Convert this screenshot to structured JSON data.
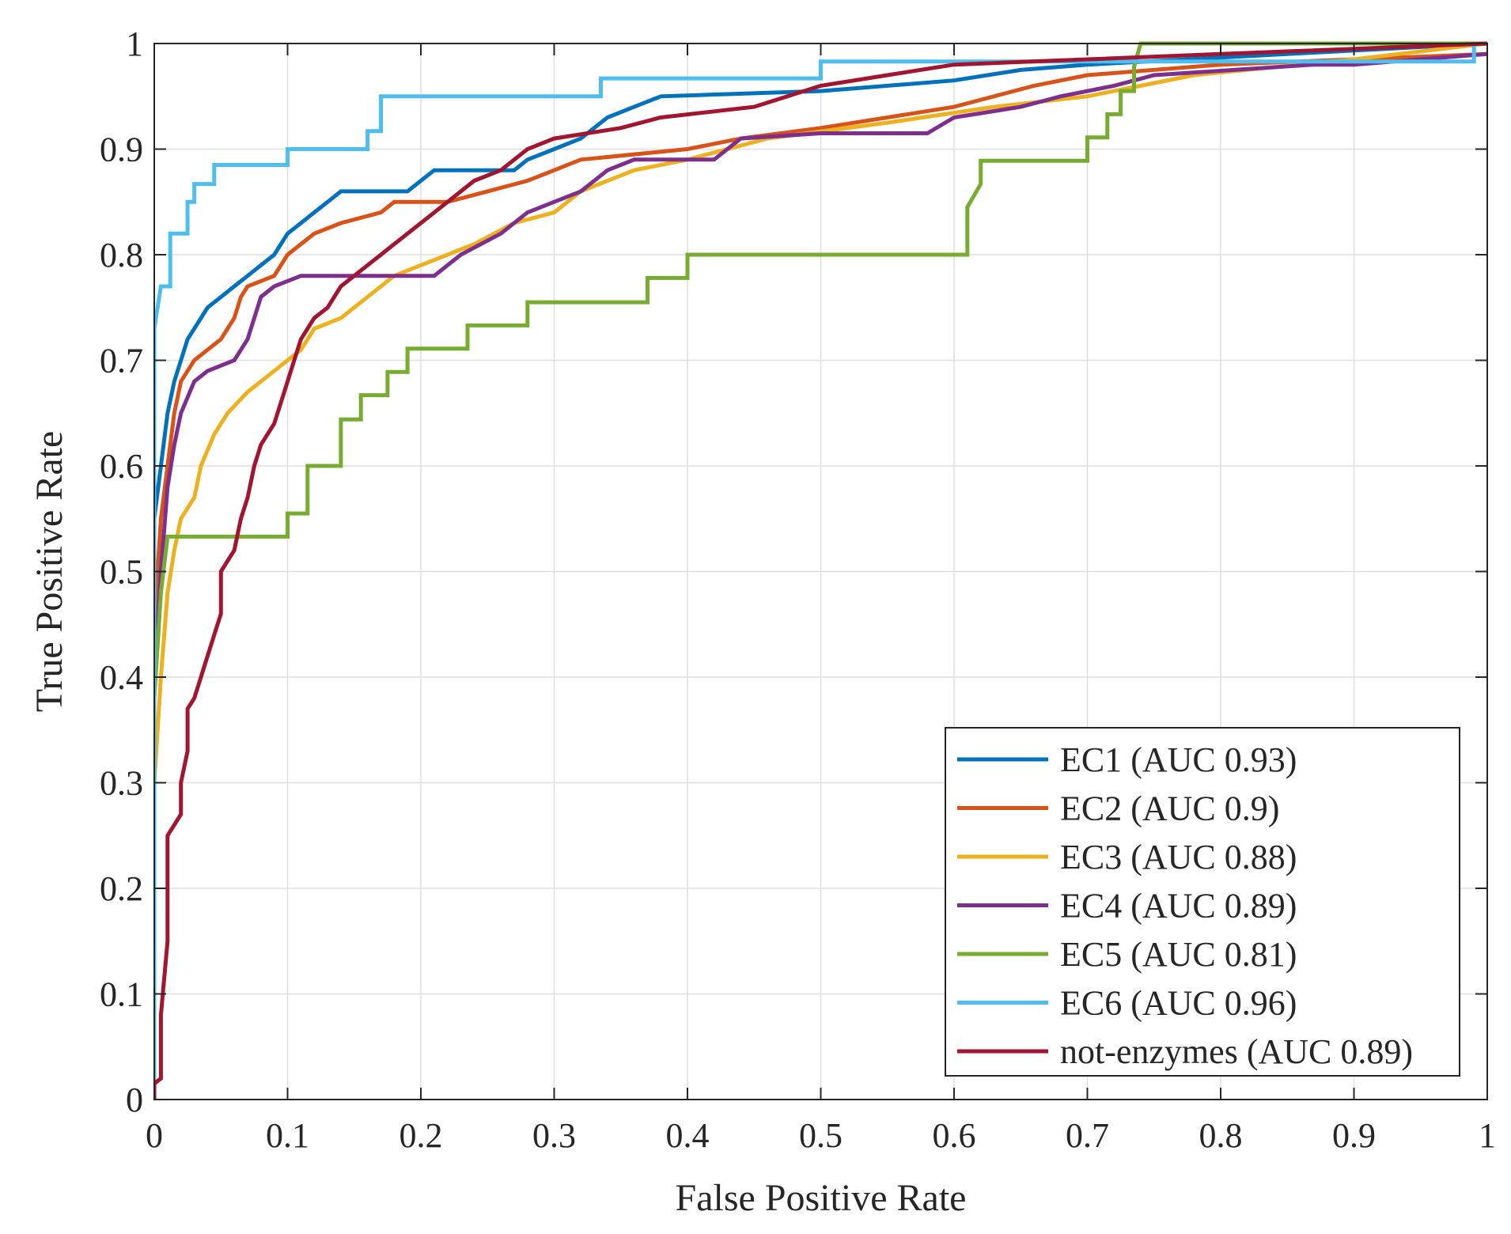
{
  "chart_data": {
    "type": "line",
    "title": "",
    "xlabel": "False Positive Rate",
    "ylabel": "True Positive Rate",
    "xlim": [
      0,
      1
    ],
    "ylim": [
      0,
      1
    ],
    "xticks": [
      "0",
      "0.1",
      "0.2",
      "0.3",
      "0.4",
      "0.5",
      "0.6",
      "0.7",
      "0.8",
      "0.9",
      "1"
    ],
    "yticks": [
      "0",
      "0.1",
      "0.2",
      "0.3",
      "0.4",
      "0.5",
      "0.6",
      "0.7",
      "0.8",
      "0.9",
      "1"
    ],
    "grid": true,
    "legend_position": "bottom-right",
    "series": [
      {
        "name": "EC1 (AUC 0.93)",
        "color": "#0072BD",
        "points": [
          [
            0,
            0
          ],
          [
            0,
            0.55
          ],
          [
            0.005,
            0.6
          ],
          [
            0.01,
            0.65
          ],
          [
            0.015,
            0.68
          ],
          [
            0.02,
            0.7
          ],
          [
            0.025,
            0.72
          ],
          [
            0.03,
            0.73
          ],
          [
            0.035,
            0.74
          ],
          [
            0.04,
            0.75
          ],
          [
            0.05,
            0.76
          ],
          [
            0.06,
            0.77
          ],
          [
            0.07,
            0.78
          ],
          [
            0.08,
            0.79
          ],
          [
            0.09,
            0.8
          ],
          [
            0.1,
            0.82
          ],
          [
            0.11,
            0.83
          ],
          [
            0.12,
            0.84
          ],
          [
            0.13,
            0.85
          ],
          [
            0.14,
            0.86
          ],
          [
            0.19,
            0.86
          ],
          [
            0.2,
            0.87
          ],
          [
            0.21,
            0.88
          ],
          [
            0.27,
            0.88
          ],
          [
            0.28,
            0.89
          ],
          [
            0.3,
            0.9
          ],
          [
            0.32,
            0.91
          ],
          [
            0.34,
            0.93
          ],
          [
            0.36,
            0.94
          ],
          [
            0.38,
            0.95
          ],
          [
            0.5,
            0.955
          ],
          [
            0.55,
            0.96
          ],
          [
            0.6,
            0.965
          ],
          [
            0.65,
            0.975
          ],
          [
            0.7,
            0.98
          ],
          [
            0.85,
            0.99
          ],
          [
            1,
            1
          ]
        ]
      },
      {
        "name": "EC2 (AUC 0.9)",
        "color": "#D95319",
        "points": [
          [
            0,
            0
          ],
          [
            0,
            0.45
          ],
          [
            0.005,
            0.55
          ],
          [
            0.01,
            0.6
          ],
          [
            0.015,
            0.65
          ],
          [
            0.02,
            0.68
          ],
          [
            0.03,
            0.7
          ],
          [
            0.04,
            0.71
          ],
          [
            0.05,
            0.72
          ],
          [
            0.06,
            0.74
          ],
          [
            0.065,
            0.76
          ],
          [
            0.07,
            0.77
          ],
          [
            0.09,
            0.78
          ],
          [
            0.1,
            0.8
          ],
          [
            0.12,
            0.82
          ],
          [
            0.14,
            0.83
          ],
          [
            0.17,
            0.84
          ],
          [
            0.18,
            0.85
          ],
          [
            0.22,
            0.85
          ],
          [
            0.25,
            0.86
          ],
          [
            0.28,
            0.87
          ],
          [
            0.3,
            0.88
          ],
          [
            0.32,
            0.89
          ],
          [
            0.4,
            0.9
          ],
          [
            0.44,
            0.91
          ],
          [
            0.5,
            0.92
          ],
          [
            0.55,
            0.93
          ],
          [
            0.6,
            0.94
          ],
          [
            0.63,
            0.95
          ],
          [
            0.66,
            0.96
          ],
          [
            0.7,
            0.97
          ],
          [
            0.8,
            0.98
          ],
          [
            1,
            0.99
          ]
        ]
      },
      {
        "name": "EC3 (AUC 0.88)",
        "color": "#EDB120",
        "points": [
          [
            0,
            0
          ],
          [
            0,
            0.3
          ],
          [
            0.005,
            0.4
          ],
          [
            0.01,
            0.48
          ],
          [
            0.015,
            0.52
          ],
          [
            0.02,
            0.55
          ],
          [
            0.03,
            0.57
          ],
          [
            0.035,
            0.6
          ],
          [
            0.045,
            0.63
          ],
          [
            0.055,
            0.65
          ],
          [
            0.07,
            0.67
          ],
          [
            0.09,
            0.69
          ],
          [
            0.1,
            0.7
          ],
          [
            0.11,
            0.71
          ],
          [
            0.12,
            0.73
          ],
          [
            0.14,
            0.74
          ],
          [
            0.16,
            0.76
          ],
          [
            0.18,
            0.78
          ],
          [
            0.2,
            0.79
          ],
          [
            0.22,
            0.8
          ],
          [
            0.24,
            0.81
          ],
          [
            0.27,
            0.83
          ],
          [
            0.3,
            0.84
          ],
          [
            0.32,
            0.86
          ],
          [
            0.36,
            0.88
          ],
          [
            0.4,
            0.89
          ],
          [
            0.46,
            0.91
          ],
          [
            0.55,
            0.925
          ],
          [
            0.63,
            0.94
          ],
          [
            0.7,
            0.95
          ],
          [
            0.78,
            0.97
          ],
          [
            0.9,
            0.985
          ],
          [
            1,
            1
          ]
        ]
      },
      {
        "name": "EC4 (AUC 0.89)",
        "color": "#7E2F8E",
        "points": [
          [
            0,
            0
          ],
          [
            0,
            0.4
          ],
          [
            0.005,
            0.5
          ],
          [
            0.01,
            0.58
          ],
          [
            0.015,
            0.62
          ],
          [
            0.02,
            0.65
          ],
          [
            0.03,
            0.68
          ],
          [
            0.04,
            0.69
          ],
          [
            0.06,
            0.7
          ],
          [
            0.07,
            0.72
          ],
          [
            0.08,
            0.76
          ],
          [
            0.09,
            0.77
          ],
          [
            0.11,
            0.78
          ],
          [
            0.21,
            0.78
          ],
          [
            0.23,
            0.8
          ],
          [
            0.26,
            0.82
          ],
          [
            0.28,
            0.84
          ],
          [
            0.32,
            0.86
          ],
          [
            0.34,
            0.88
          ],
          [
            0.36,
            0.89
          ],
          [
            0.42,
            0.89
          ],
          [
            0.44,
            0.91
          ],
          [
            0.5,
            0.915
          ],
          [
            0.58,
            0.915
          ],
          [
            0.6,
            0.93
          ],
          [
            0.65,
            0.94
          ],
          [
            0.68,
            0.95
          ],
          [
            0.72,
            0.96
          ],
          [
            0.75,
            0.97
          ],
          [
            0.87,
            0.98
          ],
          [
            0.9,
            0.98
          ],
          [
            1,
            0.99
          ]
        ]
      },
      {
        "name": "EC5 (AUC 0.81)",
        "color": "#77AC30",
        "points": [
          [
            0,
            0
          ],
          [
            0,
            0.38
          ],
          [
            0.005,
            0.48
          ],
          [
            0.01,
            0.533
          ],
          [
            0.1,
            0.533
          ],
          [
            0.1,
            0.555
          ],
          [
            0.115,
            0.555
          ],
          [
            0.115,
            0.6
          ],
          [
            0.14,
            0.6
          ],
          [
            0.14,
            0.644
          ],
          [
            0.155,
            0.644
          ],
          [
            0.155,
            0.667
          ],
          [
            0.175,
            0.667
          ],
          [
            0.175,
            0.689
          ],
          [
            0.19,
            0.689
          ],
          [
            0.19,
            0.711
          ],
          [
            0.235,
            0.711
          ],
          [
            0.235,
            0.733
          ],
          [
            0.28,
            0.733
          ],
          [
            0.28,
            0.755
          ],
          [
            0.37,
            0.755
          ],
          [
            0.37,
            0.778
          ],
          [
            0.4,
            0.778
          ],
          [
            0.4,
            0.8
          ],
          [
            0.61,
            0.8
          ],
          [
            0.61,
            0.845
          ],
          [
            0.62,
            0.867
          ],
          [
            0.62,
            0.889
          ],
          [
            0.7,
            0.889
          ],
          [
            0.7,
            0.911
          ],
          [
            0.715,
            0.911
          ],
          [
            0.715,
            0.933
          ],
          [
            0.725,
            0.933
          ],
          [
            0.725,
            0.955
          ],
          [
            0.735,
            0.955
          ],
          [
            0.735,
            0.978
          ],
          [
            0.74,
            1
          ],
          [
            1,
            1
          ]
        ]
      },
      {
        "name": "EC6 (AUC 0.96)",
        "color": "#4DBEEE",
        "points": [
          [
            0,
            0
          ],
          [
            0,
            0.73
          ],
          [
            0.005,
            0.77
          ],
          [
            0.012,
            0.77
          ],
          [
            0.012,
            0.82
          ],
          [
            0.025,
            0.82
          ],
          [
            0.025,
            0.85
          ],
          [
            0.03,
            0.85
          ],
          [
            0.03,
            0.867
          ],
          [
            0.045,
            0.867
          ],
          [
            0.045,
            0.885
          ],
          [
            0.1,
            0.885
          ],
          [
            0.1,
            0.9
          ],
          [
            0.16,
            0.9
          ],
          [
            0.16,
            0.917
          ],
          [
            0.17,
            0.917
          ],
          [
            0.17,
            0.95
          ],
          [
            0.335,
            0.95
          ],
          [
            0.335,
            0.967
          ],
          [
            0.5,
            0.967
          ],
          [
            0.5,
            0.983
          ],
          [
            0.99,
            0.983
          ],
          [
            0.99,
            1
          ]
        ]
      },
      {
        "name": "not-enzymes (AUC 0.89)",
        "color": "#A2142F",
        "points": [
          [
            0,
            0
          ],
          [
            0,
            0.015
          ],
          [
            0.005,
            0.02
          ],
          [
            0.005,
            0.08
          ],
          [
            0.01,
            0.15
          ],
          [
            0.01,
            0.25
          ],
          [
            0.015,
            0.26
          ],
          [
            0.02,
            0.27
          ],
          [
            0.02,
            0.3
          ],
          [
            0.025,
            0.33
          ],
          [
            0.025,
            0.37
          ],
          [
            0.03,
            0.38
          ],
          [
            0.035,
            0.4
          ],
          [
            0.04,
            0.42
          ],
          [
            0.045,
            0.44
          ],
          [
            0.05,
            0.46
          ],
          [
            0.05,
            0.5
          ],
          [
            0.055,
            0.51
          ],
          [
            0.06,
            0.52
          ],
          [
            0.065,
            0.55
          ],
          [
            0.07,
            0.57
          ],
          [
            0.075,
            0.6
          ],
          [
            0.08,
            0.62
          ],
          [
            0.09,
            0.64
          ],
          [
            0.095,
            0.66
          ],
          [
            0.1,
            0.68
          ],
          [
            0.105,
            0.7
          ],
          [
            0.11,
            0.72
          ],
          [
            0.12,
            0.74
          ],
          [
            0.13,
            0.75
          ],
          [
            0.14,
            0.77
          ],
          [
            0.16,
            0.79
          ],
          [
            0.17,
            0.8
          ],
          [
            0.18,
            0.81
          ],
          [
            0.2,
            0.83
          ],
          [
            0.22,
            0.85
          ],
          [
            0.24,
            0.87
          ],
          [
            0.26,
            0.88
          ],
          [
            0.28,
            0.9
          ],
          [
            0.3,
            0.91
          ],
          [
            0.35,
            0.92
          ],
          [
            0.38,
            0.93
          ],
          [
            0.45,
            0.94
          ],
          [
            0.5,
            0.96
          ],
          [
            0.55,
            0.97
          ],
          [
            0.6,
            0.98
          ],
          [
            0.7,
            0.985
          ],
          [
            0.8,
            0.99
          ],
          [
            0.9,
            0.995
          ],
          [
            1,
            1
          ]
        ]
      }
    ]
  }
}
